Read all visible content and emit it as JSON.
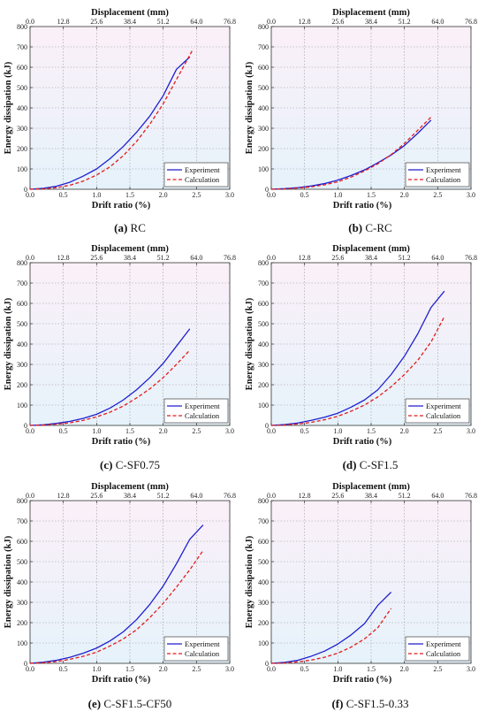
{
  "chart_data": [
    {
      "type": "line",
      "caption_label": "(a)",
      "caption_text": "RC",
      "xlabel": "Drift ratio (%)",
      "ylabel": "Energy dissipation (kJ)",
      "x2label": "Displacement (mm)",
      "xlim": [
        0,
        3.0
      ],
      "ylim": [
        0,
        800
      ],
      "xticks": [
        "0.0",
        "0.5",
        "1.0",
        "1.5",
        "2.0",
        "2.5",
        "3.0"
      ],
      "x2ticks": [
        "0.0",
        "12.8",
        "25.6",
        "38.4",
        "51.2",
        "64.0",
        "76.8"
      ],
      "yticks": [
        "0",
        "100",
        "200",
        "300",
        "400",
        "500",
        "600",
        "700",
        "800"
      ],
      "legend": "bottom-right",
      "grid": true,
      "series": [
        {
          "name": "Experiment",
          "color": "#1f1fcf",
          "dash": "solid",
          "x": [
            0,
            0.2,
            0.4,
            0.6,
            0.8,
            1.0,
            1.2,
            1.4,
            1.6,
            1.8,
            2.0,
            2.2,
            2.3,
            2.4
          ],
          "y": [
            0,
            5,
            15,
            35,
            65,
            100,
            150,
            210,
            280,
            360,
            460,
            590,
            620,
            650
          ]
        },
        {
          "name": "Calculation",
          "color": "#e21c1c",
          "dash": "dashed",
          "x": [
            0,
            0.2,
            0.4,
            0.6,
            0.8,
            1.0,
            1.2,
            1.4,
            1.6,
            1.8,
            2.0,
            2.2,
            2.3,
            2.45
          ],
          "y": [
            0,
            2,
            8,
            20,
            40,
            70,
            110,
            165,
            235,
            320,
            420,
            540,
            600,
            690
          ]
        }
      ]
    },
    {
      "type": "line",
      "caption_label": "(b)",
      "caption_text": "C-RC",
      "xlabel": "Drift ratio (%)",
      "ylabel": "Energy dissipation (kJ)",
      "x2label": "Displacement (mm)",
      "xlim": [
        0,
        3.0
      ],
      "ylim": [
        0,
        800
      ],
      "xticks": [
        "0.0",
        "0.5",
        "1.0",
        "1.5",
        "2.0",
        "2.5",
        "3.0"
      ],
      "x2ticks": [
        "0.0",
        "12.8",
        "25.6",
        "38.4",
        "51.2",
        "64.0",
        "76.8"
      ],
      "yticks": [
        "0",
        "100",
        "200",
        "300",
        "400",
        "500",
        "600",
        "700",
        "800"
      ],
      "legend": "bottom-right",
      "grid": true,
      "series": [
        {
          "name": "Experiment",
          "color": "#1f1fcf",
          "dash": "solid",
          "x": [
            0,
            0.2,
            0.4,
            0.6,
            0.8,
            1.0,
            1.2,
            1.4,
            1.6,
            1.8,
            2.0,
            2.2,
            2.4
          ],
          "y": [
            0,
            3,
            8,
            16,
            28,
            45,
            68,
            95,
            130,
            168,
            215,
            275,
            340
          ]
        },
        {
          "name": "Calculation",
          "color": "#e21c1c",
          "dash": "dashed",
          "x": [
            0,
            0.2,
            0.4,
            0.6,
            0.8,
            1.0,
            1.2,
            1.4,
            1.6,
            1.8,
            2.0,
            2.2,
            2.4
          ],
          "y": [
            0,
            2,
            6,
            12,
            22,
            37,
            60,
            90,
            125,
            170,
            225,
            290,
            355
          ]
        }
      ]
    },
    {
      "type": "line",
      "caption_label": "(c)",
      "caption_text": "C-SF0.75",
      "xlabel": "Drift ratio (%)",
      "ylabel": "Energy dissipation (kJ)",
      "x2label": "Displacement (mm)",
      "xlim": [
        0,
        3.0
      ],
      "ylim": [
        0,
        800
      ],
      "xticks": [
        "0.0",
        "0.5",
        "1.0",
        "1.5",
        "2.0",
        "2.5",
        "3.0"
      ],
      "x2ticks": [
        "0.0",
        "12.8",
        "25.6",
        "38.4",
        "51.2",
        "64.0",
        "76.8"
      ],
      "yticks": [
        "0",
        "100",
        "200",
        "300",
        "400",
        "500",
        "600",
        "700",
        "800"
      ],
      "legend": "bottom-right",
      "grid": true,
      "series": [
        {
          "name": "Experiment",
          "color": "#1f1fcf",
          "dash": "solid",
          "x": [
            0,
            0.2,
            0.4,
            0.6,
            0.8,
            1.0,
            1.2,
            1.4,
            1.6,
            1.8,
            2.0,
            2.2,
            2.4
          ],
          "y": [
            0,
            3,
            10,
            20,
            35,
            55,
            85,
            125,
            175,
            235,
            305,
            390,
            475
          ]
        },
        {
          "name": "Calculation",
          "color": "#e21c1c",
          "dash": "dashed",
          "x": [
            0,
            0.2,
            0.4,
            0.6,
            0.8,
            1.0,
            1.2,
            1.4,
            1.6,
            1.8,
            2.0,
            2.2,
            2.4
          ],
          "y": [
            0,
            2,
            6,
            13,
            25,
            42,
            65,
            95,
            135,
            180,
            235,
            300,
            370
          ]
        }
      ]
    },
    {
      "type": "line",
      "caption_label": "(d)",
      "caption_text": "C-SF1.5",
      "xlabel": "Drift ratio (%)",
      "ylabel": "Energy dissipation (kJ)",
      "x2label": "Displacement (mm)",
      "xlim": [
        0,
        3.0
      ],
      "ylim": [
        0,
        800
      ],
      "xticks": [
        "0.0",
        "0.5",
        "1.0",
        "1.5",
        "2.0",
        "2.5",
        "3.0"
      ],
      "x2ticks": [
        "0.0",
        "12.8",
        "25.6",
        "38.4",
        "51.2",
        "64.0",
        "76.8"
      ],
      "yticks": [
        "0",
        "100",
        "200",
        "300",
        "400",
        "500",
        "600",
        "700",
        "800"
      ],
      "legend": "bottom-right",
      "grid": true,
      "series": [
        {
          "name": "Experiment",
          "color": "#1f1fcf",
          "dash": "solid",
          "x": [
            0,
            0.2,
            0.4,
            0.6,
            0.8,
            1.0,
            1.2,
            1.4,
            1.6,
            1.8,
            2.0,
            2.2,
            2.4,
            2.6
          ],
          "y": [
            0,
            4,
            12,
            25,
            40,
            60,
            90,
            125,
            175,
            250,
            340,
            450,
            580,
            660
          ]
        },
        {
          "name": "Calculation",
          "color": "#e21c1c",
          "dash": "dashed",
          "x": [
            0,
            0.2,
            0.4,
            0.6,
            0.8,
            1.0,
            1.2,
            1.4,
            1.6,
            1.8,
            2.0,
            2.2,
            2.4,
            2.6
          ],
          "y": [
            0,
            2,
            7,
            15,
            28,
            45,
            70,
            100,
            140,
            190,
            250,
            320,
            410,
            535
          ]
        }
      ]
    },
    {
      "type": "line",
      "caption_label": "(e)",
      "caption_text": "C-SF1.5-CF50",
      "xlabel": "Drift ratio (%)",
      "ylabel": "Energy dissipation (kJ)",
      "x2label": "Displacement (mm)",
      "xlim": [
        0,
        3.0
      ],
      "ylim": [
        0,
        800
      ],
      "xticks": [
        "0.0",
        "0.5",
        "1.0",
        "1.5",
        "2.0",
        "2.5",
        "3.0"
      ],
      "x2ticks": [
        "0.0",
        "12.8",
        "25.6",
        "38.4",
        "51.2",
        "64.0",
        "76.8"
      ],
      "yticks": [
        "0",
        "100",
        "200",
        "300",
        "400",
        "500",
        "600",
        "700",
        "800"
      ],
      "legend": "bottom-right",
      "grid": true,
      "series": [
        {
          "name": "Experiment",
          "color": "#1f1fcf",
          "dash": "solid",
          "x": [
            0,
            0.2,
            0.4,
            0.6,
            0.8,
            1.0,
            1.2,
            1.4,
            1.6,
            1.8,
            2.0,
            2.2,
            2.4,
            2.6
          ],
          "y": [
            0,
            6,
            15,
            30,
            50,
            75,
            110,
            155,
            215,
            290,
            380,
            490,
            610,
            680
          ]
        },
        {
          "name": "Calculation",
          "color": "#e21c1c",
          "dash": "dashed",
          "x": [
            0,
            0.2,
            0.4,
            0.6,
            0.8,
            1.0,
            1.2,
            1.4,
            1.6,
            1.8,
            2.0,
            2.2,
            2.4,
            2.6
          ],
          "y": [
            0,
            3,
            9,
            20,
            35,
            55,
            85,
            120,
            165,
            225,
            295,
            375,
            460,
            555
          ]
        }
      ]
    },
    {
      "type": "line",
      "caption_label": "(f)",
      "caption_text": "C-SF1.5-0.33",
      "xlabel": "Drift ratio (%)",
      "ylabel": "Energy dissipation (kJ)",
      "x2label": "Displacement (mm)",
      "xlim": [
        0,
        3.0
      ],
      "ylim": [
        0,
        800
      ],
      "xticks": [
        "0.0",
        "0.5",
        "1.0",
        "1.5",
        "2.0",
        "2.5",
        "3.0"
      ],
      "x2ticks": [
        "0.0",
        "12.8",
        "25.6",
        "38.4",
        "51.2",
        "64.0",
        "76.8"
      ],
      "yticks": [
        "0",
        "100",
        "200",
        "300",
        "400",
        "500",
        "600",
        "700",
        "800"
      ],
      "legend": "bottom-right",
      "grid": true,
      "series": [
        {
          "name": "Experiment",
          "color": "#1f1fcf",
          "dash": "solid",
          "x": [
            0,
            0.2,
            0.4,
            0.6,
            0.8,
            1.0,
            1.2,
            1.4,
            1.6,
            1.8
          ],
          "y": [
            0,
            5,
            15,
            35,
            60,
            95,
            140,
            195,
            285,
            350
          ]
        },
        {
          "name": "Calculation",
          "color": "#e21c1c",
          "dash": "dashed",
          "x": [
            0,
            0.2,
            0.4,
            0.6,
            0.8,
            1.0,
            1.2,
            1.4,
            1.6,
            1.8
          ],
          "y": [
            0,
            2,
            7,
            16,
            30,
            50,
            80,
            120,
            175,
            270
          ]
        }
      ]
    }
  ]
}
